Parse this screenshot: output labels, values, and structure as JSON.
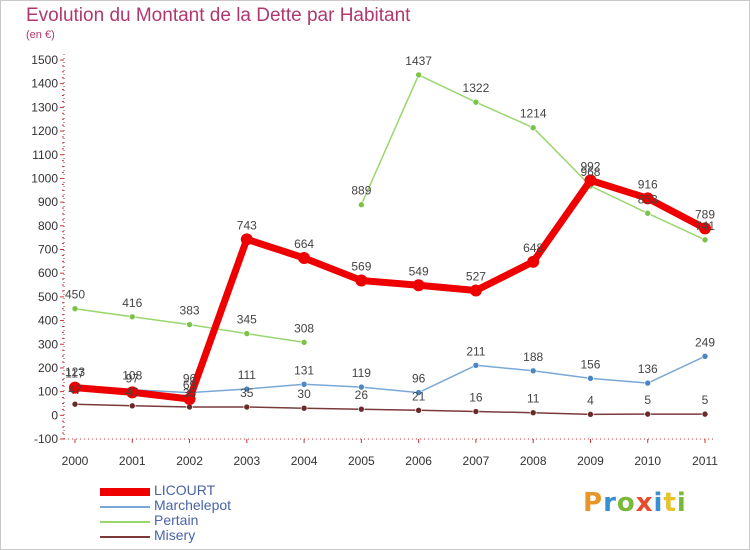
{
  "title": "Evolution du Montant de la Dette par Habitant",
  "subtitle": "(en €)",
  "brand": {
    "letters": [
      "P",
      "r",
      "o",
      "x",
      "i",
      "t",
      "i"
    ],
    "colors": [
      "#e8962a",
      "#3a8fd0",
      "#7ab83a",
      "#e84a2a",
      "#3a8fd0",
      "#e8c22a",
      "#7ab83a"
    ]
  },
  "chart_data": {
    "type": "line",
    "x": [
      "2000",
      "2001",
      "2002",
      "2003",
      "2004",
      "2005",
      "2006",
      "2007",
      "2008",
      "2009",
      "2010",
      "2011"
    ],
    "ylim": [
      -100,
      1500
    ],
    "yticks": [
      "-100",
      "0",
      "100",
      "200",
      "300",
      "400",
      "500",
      "600",
      "700",
      "800",
      "900",
      "1000",
      "1100",
      "1200",
      "1300",
      "1400",
      "1500"
    ],
    "grid": false,
    "legend": "bottom-left",
    "series": [
      {
        "name": "Pertain",
        "color": "#9ad66e",
        "dot": "#7cc24a",
        "values": [
          450,
          416,
          383,
          345,
          308,
          889,
          1437,
          1322,
          1214,
          968,
          853,
          741
        ],
        "labels": [
          "450",
          "416",
          "383",
          "345",
          "308",
          "889",
          "1437",
          "1322",
          "1214",
          "968",
          "853",
          "741"
        ]
      },
      {
        "name": "Misery",
        "color": "#7a3a3a",
        "dot": "#6a2a2a",
        "values": [
          47,
          40,
          35,
          35,
          30,
          26,
          21,
          16,
          11,
          4,
          5,
          5
        ],
        "labels": [
          "47",
          "40",
          "35",
          "35",
          "30",
          "26",
          "21",
          "16",
          "11",
          "4",
          "5",
          "5"
        ]
      },
      {
        "name": "Marchelepot",
        "color": "#7aa8d6",
        "dot": "#4a86c2",
        "values": [
          123,
          108,
          96,
          111,
          131,
          119,
          96,
          211,
          188,
          156,
          136,
          249
        ],
        "labels": [
          "123",
          "108",
          "96",
          "111",
          "131",
          "119",
          "96",
          "211",
          "188",
          "156",
          "136",
          "249"
        ]
      },
      {
        "name": "LICOURT",
        "color": "#ee0000",
        "dot": "#ee0000",
        "values": [
          117,
          97,
          69,
          743,
          664,
          569,
          549,
          527,
          648,
          992,
          916,
          789
        ],
        "labels": [
          "117",
          "97",
          "69",
          "743",
          "664",
          "569",
          "549",
          "527",
          "648",
          "992",
          "916",
          "789"
        ]
      }
    ],
    "legend_order": [
      "LICOURT",
      "Marchelepot",
      "Pertain",
      "Misery"
    ]
  }
}
